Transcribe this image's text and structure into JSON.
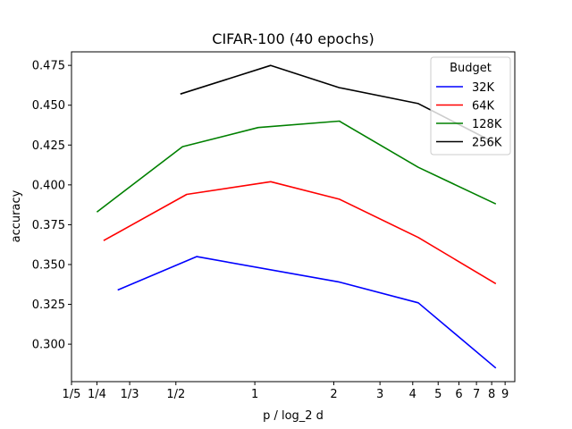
{
  "chart_data": {
    "type": "line",
    "title": "CIFAR-100 (40 epochs)",
    "xlabel": "p / log_2 d",
    "ylabel": "accuracy",
    "x_scale": "log",
    "xlim": [
      0.2,
      9.8
    ],
    "ylim": [
      0.2765,
      0.4835
    ],
    "x_ticks": [
      {
        "value": 0.2,
        "label": "1/5"
      },
      {
        "value": 0.25,
        "label": "1/4"
      },
      {
        "value": 0.3333,
        "label": "1/3"
      },
      {
        "value": 0.5,
        "label": "1/2"
      },
      {
        "value": 1,
        "label": "1"
      },
      {
        "value": 2,
        "label": "2"
      },
      {
        "value": 3,
        "label": "3"
      },
      {
        "value": 4,
        "label": "4"
      },
      {
        "value": 5,
        "label": "5"
      },
      {
        "value": 6,
        "label": "6"
      },
      {
        "value": 7,
        "label": "7"
      },
      {
        "value": 8,
        "label": "8"
      },
      {
        "value": 9,
        "label": "9"
      }
    ],
    "y_ticks": [
      {
        "value": 0.3,
        "label": "0.300"
      },
      {
        "value": 0.325,
        "label": "0.325"
      },
      {
        "value": 0.35,
        "label": "0.350"
      },
      {
        "value": 0.375,
        "label": "0.375"
      },
      {
        "value": 0.4,
        "label": "0.400"
      },
      {
        "value": 0.425,
        "label": "0.425"
      },
      {
        "value": 0.45,
        "label": "0.450"
      },
      {
        "value": 0.475,
        "label": "0.475"
      }
    ],
    "grid": false,
    "legend": {
      "title": "Budget",
      "placement": "top-right"
    },
    "series": [
      {
        "name": "32K",
        "color": "#0000ff",
        "x": [
          0.3,
          0.6,
          2.1,
          4.2,
          8.3
        ],
        "y": [
          0.334,
          0.355,
          0.339,
          0.326,
          0.285
        ]
      },
      {
        "name": "64K",
        "color": "#ff0000",
        "x": [
          0.265,
          0.55,
          1.15,
          2.1,
          4.2,
          8.3
        ],
        "y": [
          0.365,
          0.394,
          0.402,
          0.391,
          0.367,
          0.338
        ]
      },
      {
        "name": "128K",
        "color": "#008000",
        "x": [
          0.25,
          0.53,
          1.03,
          2.1,
          4.2,
          8.3
        ],
        "y": [
          0.383,
          0.424,
          0.436,
          0.44,
          0.411,
          0.388
        ]
      },
      {
        "name": "256K",
        "color": "#000000",
        "x": [
          0.52,
          1.15,
          2.1,
          4.2,
          8.3
        ],
        "y": [
          0.457,
          0.475,
          0.461,
          0.451,
          0.426
        ]
      }
    ]
  }
}
